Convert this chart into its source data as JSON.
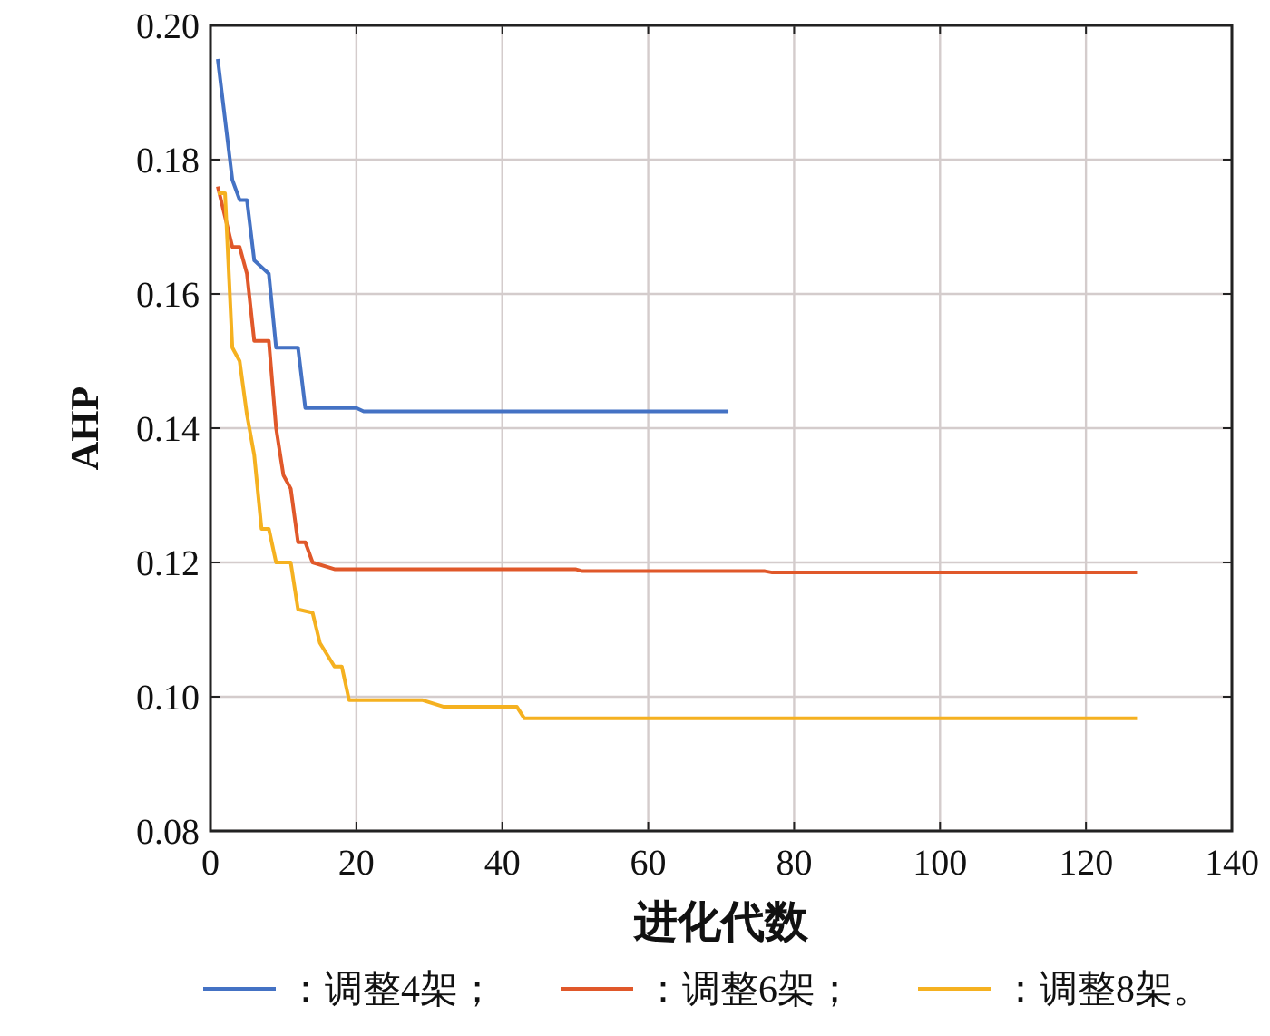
{
  "chart_data": {
    "type": "line",
    "xlabel": "进化代数",
    "ylabel": "AHP",
    "xlim": [
      0,
      140
    ],
    "xticks": [
      0,
      20,
      40,
      60,
      80,
      100,
      120,
      140
    ],
    "ylim": [
      0.08,
      0.2
    ],
    "yticks": [
      {
        "value": 0.08,
        "label": "0.08"
      },
      {
        "value": 0.1,
        "label": "0.10"
      },
      {
        "value": 0.12,
        "label": "0.12"
      },
      {
        "value": 0.14,
        "label": "0.14"
      },
      {
        "value": 0.16,
        "label": "0.16"
      },
      {
        "value": 0.18,
        "label": "0.18"
      },
      {
        "value": 0.2,
        "label": "0.20"
      }
    ],
    "grid": true,
    "legend": "bottom",
    "marker": "none",
    "line_style": "solid",
    "series": [
      {
        "name": "：调整4架；",
        "color": "#4472c4",
        "x": [
          1,
          3,
          4,
          5,
          6,
          8,
          9,
          12,
          13,
          20,
          21,
          71
        ],
        "values": [
          0.195,
          0.177,
          0.174,
          0.174,
          0.165,
          0.163,
          0.152,
          0.152,
          0.143,
          0.143,
          0.1425,
          0.1425
        ]
      },
      {
        "name": "：调整6架；",
        "color": "#e0582a",
        "x": [
          1,
          3,
          4,
          5,
          6,
          8,
          9,
          10,
          11,
          12,
          13,
          14,
          17,
          50,
          51,
          76,
          77,
          127
        ],
        "values": [
          0.176,
          0.167,
          0.167,
          0.163,
          0.153,
          0.153,
          0.14,
          0.133,
          0.131,
          0.123,
          0.123,
          0.12,
          0.119,
          0.119,
          0.1187,
          0.1187,
          0.1185,
          0.1185
        ]
      },
      {
        "name": "：调整8架。",
        "color": "#f5b120",
        "x": [
          1,
          2,
          3,
          4,
          5,
          6,
          7,
          8,
          9,
          11,
          12,
          14,
          15,
          17,
          18,
          19,
          29,
          32,
          42,
          43,
          127
        ],
        "values": [
          0.175,
          0.175,
          0.152,
          0.15,
          0.142,
          0.136,
          0.125,
          0.125,
          0.12,
          0.12,
          0.113,
          0.1125,
          0.108,
          0.1045,
          0.1045,
          0.0995,
          0.0995,
          0.0985,
          0.0985,
          0.0968,
          0.0968
        ]
      }
    ]
  }
}
